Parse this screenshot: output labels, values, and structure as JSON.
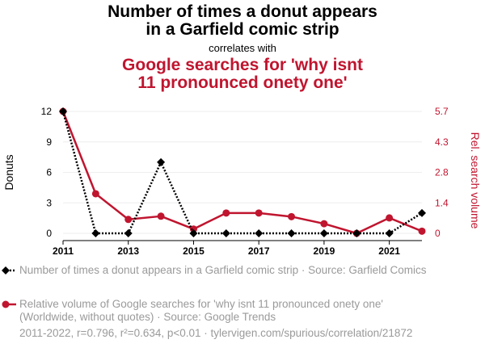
{
  "header": {
    "title_line1": "Number of times a donut appears",
    "title_line2": "in a Garfield comic strip",
    "correlates": "correlates with",
    "title2_line1": "Google searches for 'why isnt",
    "title2_line2": "11 pronounced onety one'"
  },
  "legend": {
    "item1": "Number of times a donut appears in a Garfield comic strip · Source: Garfield Comics",
    "item2": "Relative volume of Google searches for 'why isnt 11 pronounced onety one' (Worldwide, without quotes) · Source: Google Trends"
  },
  "footer": "2011-2022, r=0.796, r²=0.634, p<0.01 · tylervigen.com/spurious/correlation/21872",
  "colors": {
    "series1": "#000000",
    "series2": "#c0152f",
    "grid": "#eeeeee",
    "muted": "#9a9a9a"
  },
  "chart_data": {
    "type": "line",
    "x": [
      2011,
      2012,
      2013,
      2014,
      2015,
      2016,
      2017,
      2018,
      2019,
      2020,
      2021,
      2022
    ],
    "x_ticks": [
      "2011",
      "2013",
      "2015",
      "2017",
      "2019",
      "2021"
    ],
    "y_left": {
      "label": "Donuts",
      "ticks": [
        "0",
        "3",
        "6",
        "9",
        "12"
      ],
      "range": [
        0,
        12
      ]
    },
    "y_right": {
      "label": "Rel. search volume",
      "ticks": [
        "0",
        "1.4",
        "2.8",
        "4.3",
        "5.7"
      ],
      "range": [
        0,
        5.7
      ]
    },
    "series": [
      {
        "axis": "left",
        "style": "dotted",
        "marker": "diamond",
        "color": "#000000",
        "values": [
          12,
          0,
          0,
          7,
          0,
          0,
          0,
          0,
          0,
          0,
          0,
          2
        ]
      },
      {
        "axis": "right",
        "style": "solid",
        "marker": "circle",
        "color": "#c0152f",
        "values": [
          5.7,
          1.85,
          0.65,
          0.8,
          0.2,
          0.95,
          0.95,
          0.78,
          0.45,
          0.0,
          0.72,
          0.1
        ]
      }
    ],
    "grid": true,
    "legend_position": "bottom"
  }
}
